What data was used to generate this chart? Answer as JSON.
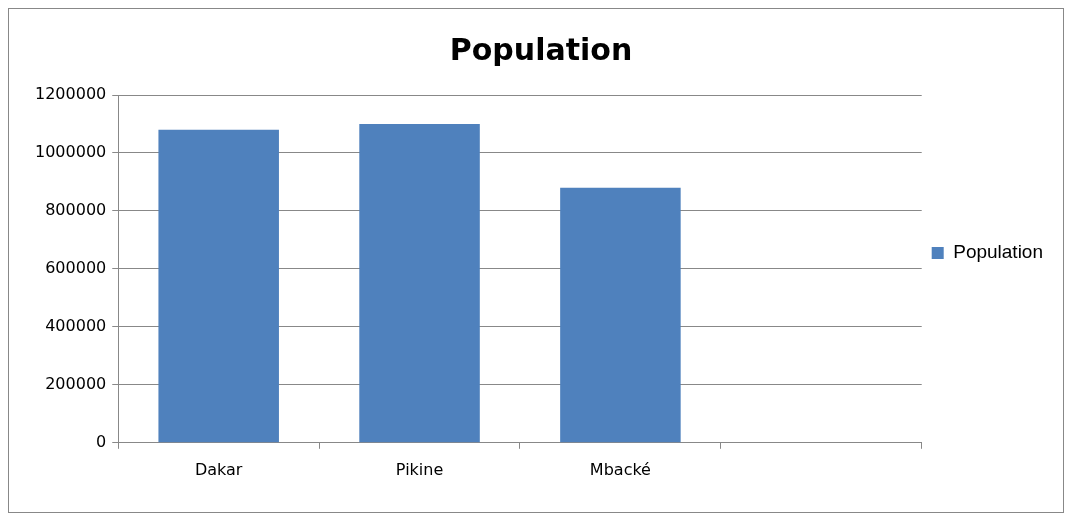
{
  "chart_data": {
    "type": "bar",
    "title": "Population",
    "categories": [
      "Dakar",
      "Pikine",
      "Mbacké",
      null
    ],
    "series": [
      {
        "name": "Population",
        "color": "#4f81bd",
        "values": [
          1080000,
          1100000,
          880000,
          null
        ]
      }
    ],
    "ylim": [
      0,
      1200000
    ],
    "yticks": [
      0,
      200000,
      400000,
      600000,
      800000,
      1000000,
      1200000
    ],
    "grid": "y",
    "legend": "right"
  }
}
